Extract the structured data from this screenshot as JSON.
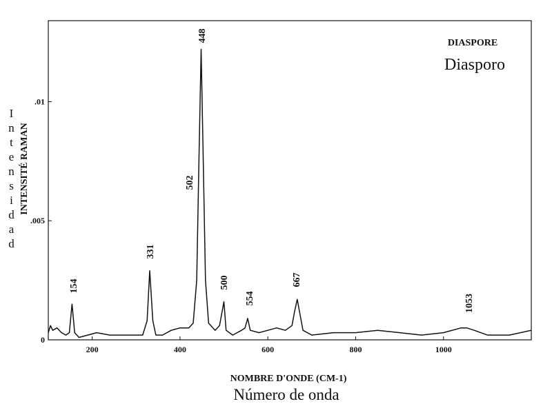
{
  "chart_data": {
    "type": "line",
    "title": "DIASPORE",
    "subtitle": "Diasporo",
    "x_label": "NOMBRE D'ONDE (CM-1)",
    "x_label_2": "Número de onda",
    "y_label": "INTENSITÉ RAMAN",
    "y_label_2": "Intensidad",
    "annotations": [
      "154",
      "331",
      "448",
      "502",
      "500",
      "554",
      "667",
      "1053"
    ],
    "color": "#111111",
    "x": [
      100,
      105,
      110,
      120,
      130,
      140,
      148,
      154,
      160,
      170,
      190,
      210,
      240,
      270,
      300,
      315,
      325,
      331,
      338,
      345,
      360,
      380,
      400,
      420,
      430,
      438,
      443,
      448,
      453,
      458,
      465,
      480,
      490,
      500,
      505,
      520,
      540,
      548,
      554,
      560,
      580,
      600,
      620,
      640,
      655,
      661,
      667,
      673,
      680,
      700,
      750,
      800,
      850,
      900,
      950,
      1000,
      1040,
      1053,
      1070,
      1100,
      1150,
      1200
    ],
    "values": [
      0.0003,
      0.0006,
      0.0004,
      0.0005,
      0.0003,
      0.0002,
      0.0003,
      0.0015,
      0.0003,
      0.0001,
      0.0002,
      0.0003,
      0.0002,
      0.0002,
      0.0002,
      0.0002,
      0.0008,
      0.0029,
      0.0008,
      0.0002,
      0.0002,
      0.0004,
      0.0005,
      0.0005,
      0.0007,
      0.0025,
      0.0075,
      0.0122,
      0.0075,
      0.0025,
      0.0007,
      0.0004,
      0.0006,
      0.0016,
      0.0004,
      0.0002,
      0.0004,
      0.0005,
      0.0009,
      0.0004,
      0.0003,
      0.0004,
      0.0005,
      0.0004,
      0.0006,
      0.0012,
      0.0017,
      0.0011,
      0.0004,
      0.0002,
      0.0003,
      0.0003,
      0.0004,
      0.0003,
      0.0002,
      0.0003,
      0.0005,
      0.0005,
      0.0004,
      0.0002,
      0.0002,
      0.0004
    ],
    "xlim": [
      100,
      1200
    ],
    "xticks": [
      200,
      400,
      600,
      800,
      1000
    ],
    "ylim": [
      0,
      0.0134
    ],
    "yticks": [
      0,
      {
        "value": 0.005,
        "label": ".005"
      },
      {
        "value": 0.01,
        "label": ".01"
      }
    ]
  }
}
